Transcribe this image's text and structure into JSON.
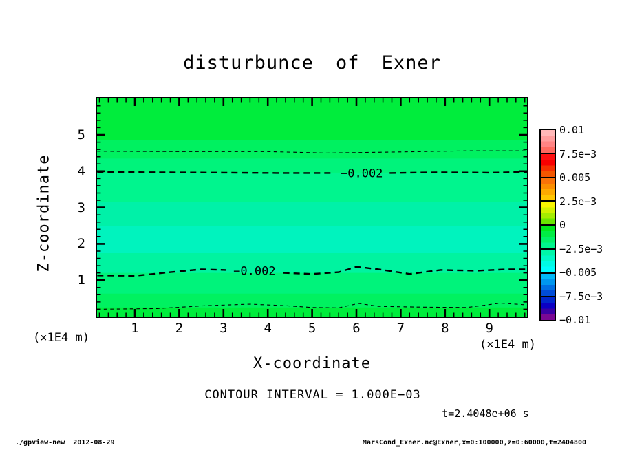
{
  "title": "disturbunce of Exner",
  "plot": {
    "x_axis": {
      "label": "X-coordinate",
      "unit": "(×1E4 m)",
      "tick_labels": [
        "1",
        "2",
        "3",
        "4",
        "5",
        "6",
        "7",
        "8",
        "9"
      ],
      "minor_step": 0.2,
      "range_units": [
        0.15,
        9.85
      ]
    },
    "z_axis": {
      "label": "Z-coordinate",
      "unit": "(×1E4 m)",
      "tick_labels": [
        "1",
        "2",
        "3",
        "4",
        "5"
      ],
      "minor_step": 0.2,
      "range_units": [
        0,
        6.05
      ]
    }
  },
  "colorbar": {
    "labels": [
      "0.01",
      "7.5e−3",
      "0.005",
      "2.5e−3",
      "0",
      "−2.5e−3",
      "−0.005",
      "−7.5e−3",
      "−0.01"
    ],
    "cells": [
      {
        "colors": [
          "#ffb8b8",
          "#ff9e9e",
          "#ff8484",
          "#ff6a60"
        ]
      },
      {
        "colors": [
          "#ff1010",
          "#f80000",
          "#f53000",
          "#f25600"
        ]
      },
      {
        "colors": [
          "#f97208",
          "#fb8e00",
          "#fdaa00",
          "#ffc600"
        ]
      },
      {
        "colors": [
          "#f8f400",
          "#d2f000",
          "#a4ec00",
          "#6ae600"
        ]
      },
      {
        "colors": [
          "#00e81c",
          "#00ec44",
          "#00f068",
          "#00f48c"
        ]
      },
      {
        "colors": [
          "#00f6a8",
          "#00f8c6",
          "#00fae4",
          "#00fcfc"
        ]
      },
      {
        "colors": [
          "#00b8f8",
          "#0096ee",
          "#006ee2",
          "#004cd8"
        ]
      },
      {
        "colors": [
          "#0026cc",
          "#0b00c4",
          "#3a00a4",
          "#7a0894"
        ]
      }
    ]
  },
  "annotations": {
    "contour_interval": "CONTOUR INTERVAL = 1.000E−03",
    "timestamp": "t=2.4048e+06 s"
  },
  "footer": {
    "left": "./gpview-new  2012-08-29",
    "right": "MarsCond_Exner.nc@Exner,x=0:100000,z=0:60000,t=2404800"
  },
  "chart_data": {
    "type": "heatmap",
    "title": "disturbunce of Exner",
    "xlabel": "X-coordinate (×1E4 m)",
    "ylabel": "Z-coordinate (×1E4 m)",
    "x_range": [
      0,
      10
    ],
    "z_range": [
      0,
      6
    ],
    "value_range": [
      -0.01,
      0.01
    ],
    "contour_interval": 0.001,
    "colorbar_levels": [
      0.01,
      0.0075,
      0.005,
      0.0025,
      0,
      -0.0025,
      -0.005,
      -0.0075,
      -0.01
    ],
    "fill_bands": [
      {
        "z_top": 6.05,
        "z_bottom": 4.86,
        "approx_value": -0.0008,
        "color": "#00ed3c"
      },
      {
        "z_top": 4.86,
        "z_bottom": 4.35,
        "approx_value": -0.0012,
        "color": "#00f160"
      },
      {
        "z_top": 4.35,
        "z_bottom": 3.96,
        "approx_value": -0.0017,
        "color": "#00f37b"
      },
      {
        "z_top": 3.96,
        "z_bottom": 3.15,
        "approx_value": -0.0022,
        "color": "#00f58e"
      },
      {
        "z_top": 3.15,
        "z_bottom": 2.49,
        "approx_value": -0.0025,
        "color": "#00f1a8"
      },
      {
        "z_top": 2.49,
        "z_bottom": 1.76,
        "approx_value": -0.0028,
        "color": "#00f3be"
      },
      {
        "z_top": 1.76,
        "z_bottom": 1.2,
        "approx_value": -0.0024,
        "color": "#00f3a0"
      },
      {
        "z_top": 1.2,
        "z_bottom": 0.63,
        "approx_value": -0.0019,
        "color": "#00f37b"
      },
      {
        "z_top": 0.63,
        "z_bottom": 0.25,
        "approx_value": -0.0013,
        "color": "#00f160"
      },
      {
        "z_top": 0.25,
        "z_bottom": 0.0,
        "approx_value": -0.0008,
        "color": "#00ed3c"
      }
    ],
    "contour_lines": [
      {
        "value": -0.001,
        "weight": "thin",
        "segments": [
          [
            [
              0.15,
              4.55
            ],
            [
              2.0,
              4.54
            ],
            [
              4.0,
              4.54
            ],
            [
              5.3,
              4.5
            ],
            [
              7.0,
              4.53
            ],
            [
              8.5,
              4.56
            ],
            [
              9.85,
              4.56
            ]
          ]
        ]
      },
      {
        "value": -0.002,
        "weight": "thick",
        "label": "−0.002",
        "label_u": 6.12,
        "label_z": 3.95,
        "segments": [
          [
            [
              0.15,
              3.98
            ],
            [
              1.5,
              3.97
            ],
            [
              3.0,
              3.96
            ],
            [
              4.2,
              3.95
            ],
            [
              5.5,
              3.95
            ]
          ],
          [
            [
              6.75,
              3.95
            ],
            [
              7.8,
              3.97
            ],
            [
              9.0,
              3.96
            ],
            [
              9.85,
              3.98
            ]
          ]
        ]
      },
      {
        "value": -0.002,
        "weight": "thick",
        "label": "−0.002",
        "label_u": 3.7,
        "label_z": 1.26,
        "segments": [
          [
            [
              0.15,
              1.13
            ],
            [
              1.0,
              1.12
            ],
            [
              1.8,
              1.22
            ],
            [
              2.5,
              1.3
            ],
            [
              3.05,
              1.28
            ]
          ],
          [
            [
              4.35,
              1.2
            ],
            [
              5.0,
              1.17
            ],
            [
              5.6,
              1.22
            ],
            [
              6.0,
              1.37
            ],
            [
              6.5,
              1.3
            ],
            [
              7.2,
              1.17
            ],
            [
              7.9,
              1.28
            ],
            [
              8.7,
              1.26
            ],
            [
              9.4,
              1.3
            ],
            [
              9.85,
              1.3
            ]
          ]
        ]
      },
      {
        "value": -0.001,
        "weight": "thin",
        "segments": [
          [
            [
              0.15,
              0.2
            ],
            [
              1.5,
              0.22
            ],
            [
              2.6,
              0.3
            ],
            [
              3.6,
              0.34
            ],
            [
              4.4,
              0.3
            ],
            [
              5.0,
              0.25
            ],
            [
              5.6,
              0.24
            ],
            [
              6.05,
              0.36
            ],
            [
              6.5,
              0.28
            ],
            [
              7.5,
              0.26
            ],
            [
              8.5,
              0.25
            ],
            [
              9.25,
              0.37
            ],
            [
              9.85,
              0.32
            ]
          ]
        ]
      }
    ]
  }
}
